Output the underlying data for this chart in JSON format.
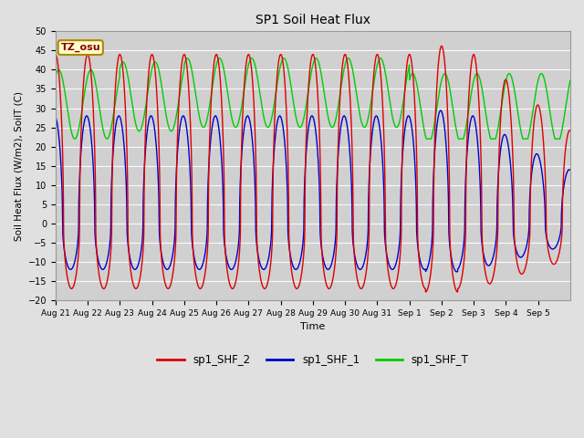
{
  "title": "SP1 Soil Heat Flux",
  "xlabel": "Time",
  "ylabel": "Soil Heat Flux (W/m2), SoilT (C)",
  "ylim": [
    -20,
    50
  ],
  "yticks": [
    -20,
    -15,
    -10,
    -5,
    0,
    5,
    10,
    15,
    20,
    25,
    30,
    35,
    40,
    45,
    50
  ],
  "colors": {
    "sp1_SHF_2": "#dd0000",
    "sp1_SHF_1": "#0000cc",
    "sp1_SHF_T": "#00cc00"
  },
  "line_width": 1.0,
  "background_color": "#e0e0e0",
  "plot_bg_color": "#d0d0d0",
  "annotation_text": "TZ_osu",
  "annotation_bg": "#ffffcc",
  "annotation_border": "#aa8800",
  "annotation_text_color": "#880000",
  "legend_labels": [
    "sp1_SHF_2",
    "sp1_SHF_1",
    "sp1_SHF_T"
  ],
  "xtick_labels": [
    "Aug 21",
    "Aug 22",
    "Aug 23",
    "Aug 24",
    "Aug 25",
    "Aug 26",
    "Aug 27",
    "Aug 28",
    "Aug 29",
    "Aug 30",
    "Aug 31",
    "Sep 1",
    "Sep 2",
    "Sep 3",
    "Sep 4",
    "Sep 5"
  ],
  "n_days": 16,
  "pts_per_day": 288
}
